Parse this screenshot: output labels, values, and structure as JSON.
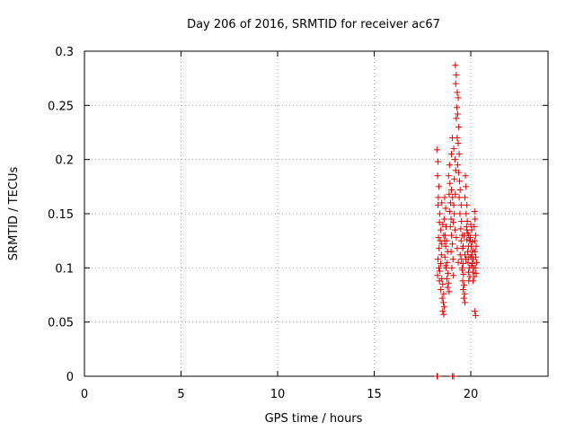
{
  "chart_data": {
    "type": "scatter",
    "title": "Day 206 of 2016, SRMTID for receiver ac67",
    "xlabel": "GPS time / hours",
    "ylabel": "SRMTID / TECUs",
    "xlim": [
      0,
      24
    ],
    "ylim": [
      0,
      0.3
    ],
    "xticks": [
      "0",
      "5",
      "10",
      "15",
      "20"
    ],
    "yticks": [
      "0",
      "0.05",
      "0.1",
      "0.15",
      "0.2",
      "0.25",
      "0.3"
    ],
    "grid": true,
    "marker": "+",
    "color": "#e00000",
    "series": [
      {
        "name": "SRMTID",
        "points": [
          [
            18.25,
            0.0
          ],
          [
            18.28,
            0.0
          ],
          [
            19.05,
            0.0
          ],
          [
            19.12,
            0.0
          ],
          [
            18.25,
            0.209
          ],
          [
            18.3,
            0.198
          ],
          [
            18.28,
            0.185
          ],
          [
            18.35,
            0.175
          ],
          [
            18.32,
            0.165
          ],
          [
            18.3,
            0.158
          ],
          [
            18.4,
            0.15
          ],
          [
            18.38,
            0.142
          ],
          [
            18.45,
            0.135
          ],
          [
            18.33,
            0.128
          ],
          [
            18.42,
            0.125
          ],
          [
            18.5,
            0.122
          ],
          [
            18.36,
            0.118
          ],
          [
            18.48,
            0.112
          ],
          [
            18.3,
            0.108
          ],
          [
            18.44,
            0.104
          ],
          [
            18.35,
            0.1
          ],
          [
            18.4,
            0.097
          ],
          [
            18.28,
            0.093
          ],
          [
            18.5,
            0.09
          ],
          [
            18.38,
            0.088
          ],
          [
            18.55,
            0.085
          ],
          [
            18.45,
            0.08
          ],
          [
            18.6,
            0.076
          ],
          [
            18.52,
            0.072
          ],
          [
            18.58,
            0.068
          ],
          [
            18.62,
            0.064
          ],
          [
            18.55,
            0.06
          ],
          [
            18.6,
            0.057
          ],
          [
            18.65,
            0.165
          ],
          [
            18.7,
            0.155
          ],
          [
            18.62,
            0.145
          ],
          [
            18.72,
            0.138
          ],
          [
            18.68,
            0.13
          ],
          [
            18.75,
            0.125
          ],
          [
            18.7,
            0.12
          ],
          [
            18.8,
            0.115
          ],
          [
            18.66,
            0.11
          ],
          [
            18.78,
            0.105
          ],
          [
            18.72,
            0.1
          ],
          [
            18.82,
            0.095
          ],
          [
            18.76,
            0.09
          ],
          [
            18.85,
            0.086
          ],
          [
            18.8,
            0.082
          ],
          [
            18.88,
            0.078
          ],
          [
            18.9,
            0.195
          ],
          [
            18.85,
            0.185
          ],
          [
            18.92,
            0.178
          ],
          [
            18.88,
            0.168
          ],
          [
            18.95,
            0.16
          ],
          [
            18.9,
            0.152
          ],
          [
            18.98,
            0.145
          ],
          [
            18.94,
            0.138
          ],
          [
            19.0,
            0.13
          ],
          [
            19.05,
            0.122
          ],
          [
            18.98,
            0.115
          ],
          [
            19.08,
            0.108
          ],
          [
            19.02,
            0.1
          ],
          [
            19.1,
            0.093
          ],
          [
            19.06,
            0.165
          ],
          [
            19.12,
            0.158
          ],
          [
            19.0,
            0.172
          ],
          [
            19.15,
            0.15
          ],
          [
            19.1,
            0.142
          ],
          [
            19.18,
            0.135
          ],
          [
            19.05,
            0.22
          ],
          [
            19.12,
            0.21
          ],
          [
            19.18,
            0.2
          ],
          [
            19.22,
            0.19
          ],
          [
            19.15,
            0.182
          ],
          [
            19.2,
            0.287
          ],
          [
            19.25,
            0.278
          ],
          [
            19.22,
            0.27
          ],
          [
            19.3,
            0.262
          ],
          [
            19.35,
            0.257
          ],
          [
            19.28,
            0.248
          ],
          [
            19.32,
            0.242
          ],
          [
            19.25,
            0.238
          ],
          [
            19.38,
            0.23
          ],
          [
            19.3,
            0.22
          ],
          [
            19.35,
            0.215
          ],
          [
            19.4,
            0.205
          ],
          [
            19.32,
            0.195
          ],
          [
            19.38,
            0.188
          ],
          [
            19.42,
            0.18
          ],
          [
            19.45,
            0.172
          ],
          [
            19.4,
            0.165
          ],
          [
            19.5,
            0.158
          ],
          [
            19.44,
            0.15
          ],
          [
            19.52,
            0.143
          ],
          [
            19.48,
            0.136
          ],
          [
            19.55,
            0.13
          ],
          [
            19.5,
            0.125
          ],
          [
            19.58,
            0.118
          ],
          [
            19.45,
            0.112
          ],
          [
            19.52,
            0.108
          ],
          [
            19.6,
            0.104
          ],
          [
            19.56,
            0.098
          ],
          [
            19.62,
            0.094
          ],
          [
            19.58,
            0.088
          ],
          [
            19.65,
            0.084
          ],
          [
            19.6,
            0.08
          ],
          [
            19.68,
            0.076
          ],
          [
            19.64,
            0.072
          ],
          [
            19.7,
            0.068
          ],
          [
            19.72,
            0.185
          ],
          [
            19.75,
            0.175
          ],
          [
            19.7,
            0.165
          ],
          [
            19.8,
            0.158
          ],
          [
            19.76,
            0.15
          ],
          [
            19.82,
            0.143
          ],
          [
            19.78,
            0.138
          ],
          [
            19.85,
            0.132
          ],
          [
            19.8,
            0.126
          ],
          [
            19.88,
            0.12
          ],
          [
            19.84,
            0.115
          ],
          [
            19.9,
            0.11
          ],
          [
            19.86,
            0.105
          ],
          [
            19.92,
            0.1
          ],
          [
            19.88,
            0.096
          ],
          [
            19.95,
            0.092
          ],
          [
            19.9,
            0.088
          ],
          [
            20.0,
            0.14
          ],
          [
            20.05,
            0.135
          ],
          [
            19.98,
            0.128
          ],
          [
            20.08,
            0.124
          ],
          [
            20.02,
            0.12
          ],
          [
            20.1,
            0.116
          ],
          [
            20.05,
            0.112
          ],
          [
            20.12,
            0.108
          ],
          [
            20.08,
            0.104
          ],
          [
            20.15,
            0.1
          ],
          [
            20.1,
            0.096
          ],
          [
            20.18,
            0.092
          ],
          [
            20.12,
            0.088
          ],
          [
            20.2,
            0.152
          ],
          [
            20.22,
            0.145
          ],
          [
            20.18,
            0.138
          ],
          [
            20.25,
            0.13
          ],
          [
            20.2,
            0.125
          ],
          [
            20.28,
            0.12
          ],
          [
            20.22,
            0.115
          ],
          [
            20.26,
            0.11
          ],
          [
            20.3,
            0.105
          ],
          [
            20.24,
            0.1
          ],
          [
            20.28,
            0.095
          ],
          [
            20.2,
            0.06
          ],
          [
            20.25,
            0.056
          ],
          [
            18.5,
            0.16
          ],
          [
            18.55,
            0.14
          ],
          [
            18.6,
            0.13
          ],
          [
            18.65,
            0.125
          ],
          [
            18.7,
            0.102
          ],
          [
            19.0,
            0.205
          ],
          [
            19.2,
            0.168
          ],
          [
            19.25,
            0.128
          ],
          [
            19.3,
            0.118
          ],
          [
            19.35,
            0.105
          ],
          [
            19.55,
            0.1
          ],
          [
            19.6,
            0.12
          ],
          [
            19.65,
            0.13
          ],
          [
            19.7,
            0.112
          ],
          [
            19.75,
            0.108
          ],
          [
            19.8,
            0.135
          ],
          [
            19.9,
            0.13
          ],
          [
            19.95,
            0.125
          ],
          [
            20.0,
            0.11
          ],
          [
            20.05,
            0.102
          ]
        ]
      }
    ]
  }
}
